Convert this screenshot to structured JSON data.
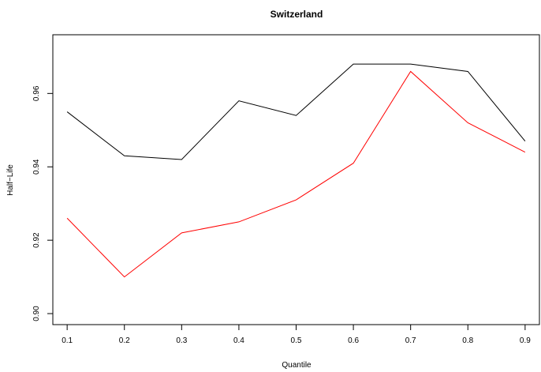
{
  "chart_data": {
    "type": "line",
    "title": "Switzerland",
    "xlabel": "Quantile",
    "ylabel": "Half−Life",
    "x": [
      0.1,
      0.2,
      0.3,
      0.4,
      0.5,
      0.6,
      0.7,
      0.8,
      0.9
    ],
    "x_ticks": [
      "0.1",
      "0.2",
      "0.3",
      "0.4",
      "0.5",
      "0.6",
      "0.7",
      "0.8",
      "0.9"
    ],
    "y_ticks": [
      "0.90",
      "0.92",
      "0.94",
      "0.96"
    ],
    "y_tick_values": [
      0.9,
      0.92,
      0.94,
      0.96
    ],
    "xlim": [
      0.075,
      0.925
    ],
    "ylim": [
      0.897,
      0.976
    ],
    "grid": false,
    "legend": "none",
    "series": [
      {
        "color": "#000000",
        "values": [
          0.955,
          0.943,
          0.942,
          0.958,
          0.954,
          0.968,
          0.968,
          0.966,
          0.947
        ]
      },
      {
        "color": "#ff0000",
        "values": [
          0.926,
          0.91,
          0.922,
          0.925,
          0.931,
          0.941,
          0.966,
          0.952,
          0.944
        ]
      }
    ]
  }
}
